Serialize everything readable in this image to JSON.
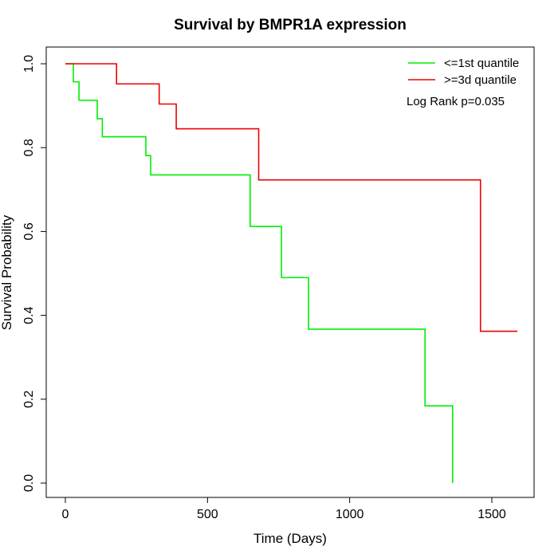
{
  "chart_data": {
    "type": "line",
    "step": true,
    "title": "Survival by BMPR1A expression",
    "xlabel": "Time (Days)",
    "ylabel": "Survival Probability",
    "xlim": [
      0,
      1650
    ],
    "ylim": [
      0,
      1.05
    ],
    "xticks": [
      0,
      500,
      1000,
      1500
    ],
    "yticks": [
      0.0,
      0.2,
      0.4,
      0.6,
      0.8,
      1.0
    ],
    "xtick_labels": [
      "0",
      "500",
      "1000",
      "1500"
    ],
    "ytick_labels": [
      "0.0",
      "0.2",
      "0.4",
      "0.6",
      "0.8",
      "1.0"
    ],
    "grid": false,
    "legend_position": "top-right",
    "annotation": "Log Rank p=0.035",
    "series": [
      {
        "name": "<=1st quantile",
        "color": "#00ee00",
        "x": [
          0,
          28,
          48,
          112,
          130,
          283,
          300,
          650,
          760,
          855,
          1265,
          1362,
          1362
        ],
        "y": [
          1.0,
          0.957,
          0.913,
          0.869,
          0.826,
          0.781,
          0.735,
          0.612,
          0.49,
          0.367,
          0.184,
          0.184,
          0.0
        ]
      },
      {
        "name": ">=3d quantile",
        "color": "#ee0000",
        "x": [
          0,
          180,
          330,
          390,
          680,
          1460,
          1590
        ],
        "y": [
          1.0,
          0.952,
          0.904,
          0.845,
          0.723,
          0.362,
          0.362
        ]
      }
    ]
  }
}
